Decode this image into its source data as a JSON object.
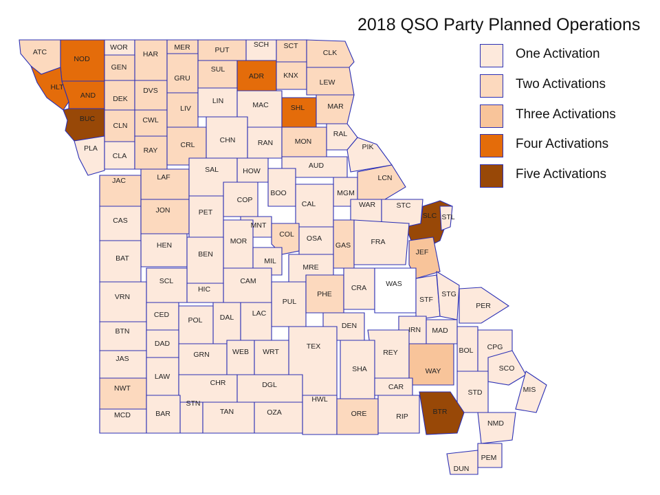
{
  "title": "2018 QSO Party Planned Operations",
  "colors": {
    "0": "#ffffff",
    "1": "#fde9dc",
    "2": "#fcd9be",
    "3": "#f8c49a",
    "4": "#e46c0a",
    "5": "#984807",
    "border": "#2a2fb5"
  },
  "legend": [
    {
      "label": "One Activation",
      "level": 1
    },
    {
      "label": "Two Activations",
      "level": 2
    },
    {
      "label": "Three Activations",
      "level": 3
    },
    {
      "label": "Four Activations",
      "level": 4
    },
    {
      "label": "Five Activations",
      "level": 5
    }
  ],
  "counties": [
    {
      "code": "ATC",
      "level": 2
    },
    {
      "code": "NOD",
      "level": 4
    },
    {
      "code": "WOR",
      "level": 1
    },
    {
      "code": "HAR",
      "level": 2
    },
    {
      "code": "MER",
      "level": 2
    },
    {
      "code": "PUT",
      "level": 2
    },
    {
      "code": "SCH",
      "level": 1
    },
    {
      "code": "SCT",
      "level": 2
    },
    {
      "code": "CLK",
      "level": 2
    },
    {
      "code": "HLT",
      "level": 4
    },
    {
      "code": "AND",
      "level": 4
    },
    {
      "code": "GEN",
      "level": 2
    },
    {
      "code": "DEK",
      "level": 2
    },
    {
      "code": "DVS",
      "level": 2
    },
    {
      "code": "GRU",
      "level": 2
    },
    {
      "code": "SUL",
      "level": 2
    },
    {
      "code": "ADR",
      "level": 4
    },
    {
      "code": "KNX",
      "level": 2
    },
    {
      "code": "LEW",
      "level": 2
    },
    {
      "code": "BUC",
      "level": 5
    },
    {
      "code": "CLN",
      "level": 2
    },
    {
      "code": "CWL",
      "level": 2
    },
    {
      "code": "LIV",
      "level": 2
    },
    {
      "code": "LIN",
      "level": 1
    },
    {
      "code": "MAC",
      "level": 1
    },
    {
      "code": "SHL",
      "level": 4
    },
    {
      "code": "MAR",
      "level": 2
    },
    {
      "code": "PLA",
      "level": 1
    },
    {
      "code": "CLA",
      "level": 1
    },
    {
      "code": "RAY",
      "level": 2
    },
    {
      "code": "CRL",
      "level": 2
    },
    {
      "code": "CHN",
      "level": 1
    },
    {
      "code": "RAN",
      "level": 1
    },
    {
      "code": "MON",
      "level": 2
    },
    {
      "code": "RAL",
      "level": 1
    },
    {
      "code": "PIK",
      "level": 1
    },
    {
      "code": "AUD",
      "level": 1
    },
    {
      "code": "JAC",
      "level": 2
    },
    {
      "code": "LAF",
      "level": 2
    },
    {
      "code": "SAL",
      "level": 1
    },
    {
      "code": "HOW",
      "level": 1
    },
    {
      "code": "BOO",
      "level": 1
    },
    {
      "code": "MGM",
      "level": 1
    },
    {
      "code": "LCN",
      "level": 2
    },
    {
      "code": "CAS",
      "level": 1
    },
    {
      "code": "JON",
      "level": 2
    },
    {
      "code": "PET",
      "level": 1
    },
    {
      "code": "COP",
      "level": 1
    },
    {
      "code": "CAL",
      "level": 1
    },
    {
      "code": "WAR",
      "level": 1
    },
    {
      "code": "STC",
      "level": 1
    },
    {
      "code": "SLC",
      "level": 5
    },
    {
      "code": "STL",
      "level": 1
    },
    {
      "code": "MNT",
      "level": 1
    },
    {
      "code": "COL",
      "level": 2
    },
    {
      "code": "OSA",
      "level": 1
    },
    {
      "code": "GAS",
      "level": 2
    },
    {
      "code": "FRA",
      "level": 1
    },
    {
      "code": "HEN",
      "level": 1
    },
    {
      "code": "MOR",
      "level": 1
    },
    {
      "code": "BAT",
      "level": 1
    },
    {
      "code": "BEN",
      "level": 1
    },
    {
      "code": "MIL",
      "level": 1
    },
    {
      "code": "JEF",
      "level": 3
    },
    {
      "code": "MRE",
      "level": 1
    },
    {
      "code": "SCL",
      "level": 1
    },
    {
      "code": "CAM",
      "level": 1
    },
    {
      "code": "HIC",
      "level": 1
    },
    {
      "code": "VRN",
      "level": 1
    },
    {
      "code": "PUL",
      "level": 1
    },
    {
      "code": "PHE",
      "level": 2
    },
    {
      "code": "CRA",
      "level": 1
    },
    {
      "code": "WAS",
      "level": 0
    },
    {
      "code": "STF",
      "level": 1
    },
    {
      "code": "STG",
      "level": 1
    },
    {
      "code": "PER",
      "level": 1
    },
    {
      "code": "CED",
      "level": 1
    },
    {
      "code": "DAL",
      "level": 1
    },
    {
      "code": "LAC",
      "level": 1
    },
    {
      "code": "POL",
      "level": 1
    },
    {
      "code": "DEN",
      "level": 1
    },
    {
      "code": "IRN",
      "level": 1
    },
    {
      "code": "MAD",
      "level": 1
    },
    {
      "code": "BTN",
      "level": 1
    },
    {
      "code": "DAD",
      "level": 1
    },
    {
      "code": "TEX",
      "level": 1
    },
    {
      "code": "BOL",
      "level": 1
    },
    {
      "code": "CPG",
      "level": 1
    },
    {
      "code": "GRN",
      "level": 1
    },
    {
      "code": "WEB",
      "level": 1
    },
    {
      "code": "WRT",
      "level": 1
    },
    {
      "code": "REY",
      "level": 1
    },
    {
      "code": "JAS",
      "level": 1
    },
    {
      "code": "SHA",
      "level": 1
    },
    {
      "code": "SCO",
      "level": 1
    },
    {
      "code": "LAW",
      "level": 1
    },
    {
      "code": "WAY",
      "level": 3
    },
    {
      "code": "CHR",
      "level": 1
    },
    {
      "code": "DGL",
      "level": 1
    },
    {
      "code": "CAR",
      "level": 1
    },
    {
      "code": "MIS",
      "level": 1
    },
    {
      "code": "NWT",
      "level": 2
    },
    {
      "code": "STN",
      "level": 1
    },
    {
      "code": "HWL",
      "level": 1
    },
    {
      "code": "STD",
      "level": 1
    },
    {
      "code": "MCD",
      "level": 1
    },
    {
      "code": "BAR",
      "level": 1
    },
    {
      "code": "TAN",
      "level": 1
    },
    {
      "code": "OZA",
      "level": 1
    },
    {
      "code": "ORE",
      "level": 2
    },
    {
      "code": "RIP",
      "level": 1
    },
    {
      "code": "BTR",
      "level": 5
    },
    {
      "code": "NMD",
      "level": 1
    },
    {
      "code": "PEM",
      "level": 1
    },
    {
      "code": "DUN",
      "level": 1
    }
  ]
}
